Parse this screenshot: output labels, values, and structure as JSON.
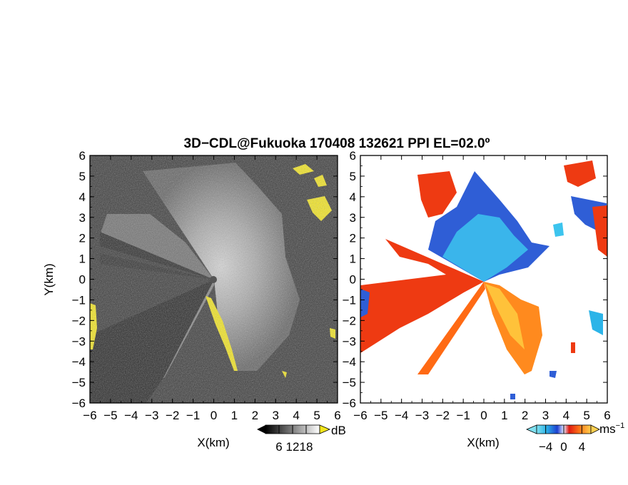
{
  "title": "3D−CDL@Fukuoka 170408 132621 PPI EL=02.0º",
  "chart_data": [
    {
      "type": "heatmap",
      "panel": "left",
      "field": "SNR",
      "xlabel": "X(km)",
      "ylabel": "Y(km)",
      "xlim": [
        -6,
        6
      ],
      "ylim": [
        -6,
        6
      ],
      "xticks": [
        "−6",
        "−5",
        "−4",
        "−3",
        "−2",
        "−1",
        "0",
        "1",
        "2",
        "3",
        "4",
        "5",
        "6"
      ],
      "yticks": [
        "6",
        "5",
        "4",
        "3",
        "2",
        "1",
        "0",
        "−1",
        "−2",
        "−3",
        "−4",
        "−5",
        "−6"
      ],
      "colorbar": {
        "unit": "dB",
        "ticks": [
          "6",
          "12",
          "18"
        ],
        "range": [
          0,
          24
        ],
        "colormap": "grayscale",
        "overflow_color": "#f7e81a"
      }
    },
    {
      "type": "heatmap",
      "panel": "right",
      "field": "Doppler velocity",
      "xlabel": "X(km)",
      "ylabel": "",
      "xlim": [
        -6,
        6
      ],
      "ylim": [
        -6,
        6
      ],
      "xticks": [
        "−6",
        "−5",
        "−4",
        "−3",
        "−2",
        "−1",
        "0",
        "1",
        "2",
        "3",
        "4",
        "5",
        "6"
      ],
      "yticks": [
        "6",
        "5",
        "4",
        "3",
        "2",
        "1",
        "0",
        "−1",
        "−2",
        "−3",
        "−4",
        "−5",
        "−6"
      ],
      "colorbar": {
        "unit": "ms",
        "unit_exp": "−1",
        "ticks": [
          "−4",
          "0",
          "4"
        ],
        "range": [
          -6,
          6
        ],
        "colormap": "blue-white-red"
      }
    }
  ],
  "colors": {
    "background_gray": "#2e2e2e",
    "snr_bright": "#d8d8d8",
    "snr_yellow": "#f4e61c",
    "vel_blue": "#2f5ed6",
    "vel_cyan": "#3cc4ee",
    "vel_red": "#ee3a12",
    "vel_orange": "#ff8a1e",
    "vel_yellow": "#ffc23a"
  }
}
